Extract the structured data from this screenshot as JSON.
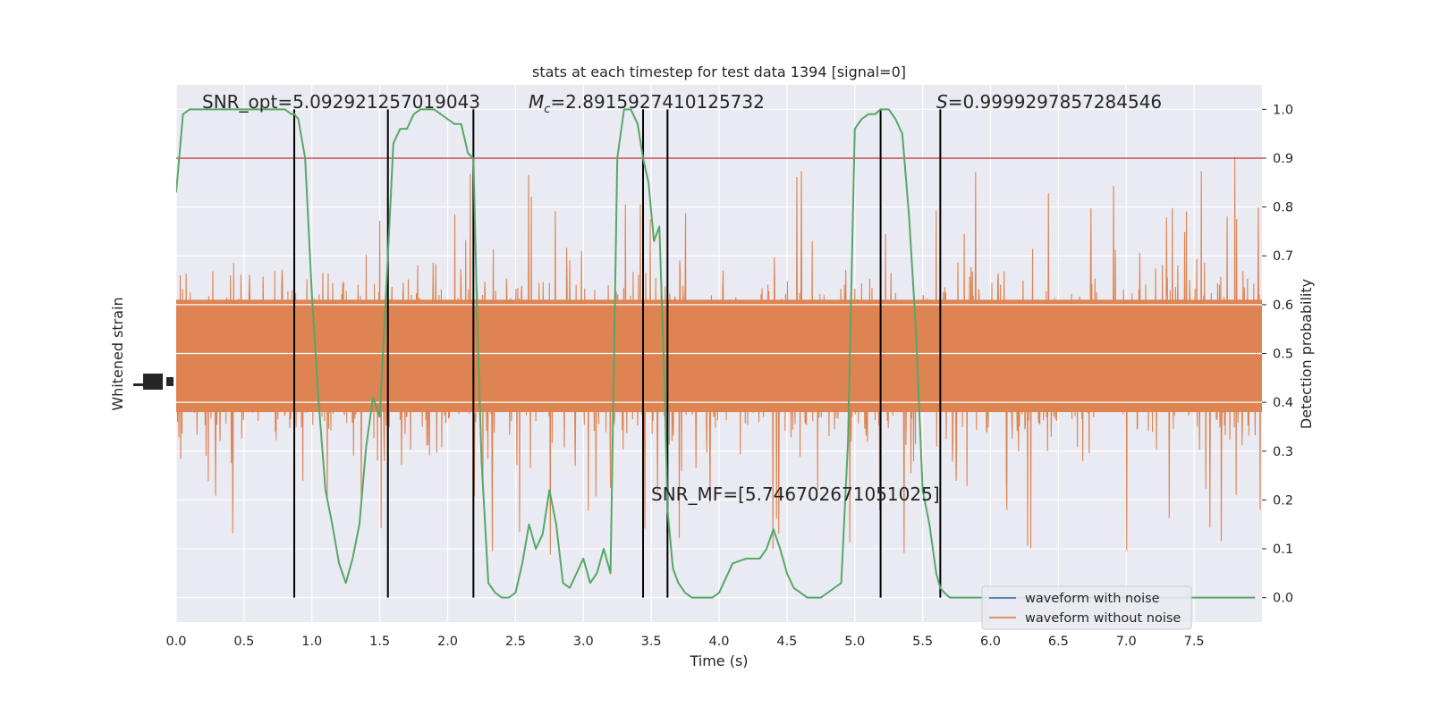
{
  "chart_data": {
    "type": "line",
    "title": "stats at each timestep for test data 1394 [signal=0]",
    "xlabel": "Time (s)",
    "ylabel_left": "Whitened strain",
    "ylabel_right": "Detection probability",
    "xlim": [
      0.0,
      8.0
    ],
    "ylim_right": [
      -0.05,
      1.05
    ],
    "x_ticks": [
      0.0,
      0.5,
      1.0,
      1.5,
      2.0,
      2.5,
      3.0,
      3.5,
      4.0,
      4.5,
      5.0,
      5.5,
      6.0,
      6.5,
      7.0,
      7.5
    ],
    "x_tick_labels": [
      "0.0",
      "0.5",
      "1.0",
      "1.5",
      "2.0",
      "2.5",
      "3.0",
      "3.5",
      "4.0",
      "4.5",
      "5.0",
      "5.5",
      "6.0",
      "6.5",
      "7.0",
      "7.5"
    ],
    "y_right_ticks": [
      0.0,
      0.1,
      0.2,
      0.3,
      0.4,
      0.5,
      0.6,
      0.7,
      0.8,
      0.9,
      1.0
    ],
    "y_right_tick_labels": [
      "0.0",
      "0.1",
      "0.2",
      "0.3",
      "0.4",
      "0.5",
      "0.6",
      "0.7",
      "0.8",
      "0.9",
      "1.0"
    ],
    "grid": true,
    "legend_position": "lower-right",
    "legend": [
      {
        "name": "waveform with noise",
        "color": "#4c72b0"
      },
      {
        "name": "waveform without noise",
        "color": "#dd8452"
      }
    ],
    "colors": {
      "background": "#eaeaf2",
      "noise_series": "#dd8452",
      "probability": "#55a868",
      "threshold": "#c44e52",
      "markers": "#000000"
    },
    "threshold": 0.9,
    "strain_band": {
      "typical_low": 0.3,
      "typical_high": 0.69,
      "spike_min": 0.0,
      "spike_max": 1.0
    },
    "vertical_markers_x": [
      0.87,
      1.56,
      2.19,
      3.44,
      3.62,
      5.19,
      5.63
    ],
    "probability_series": {
      "name": "detection probability",
      "x": [
        0.0,
        0.05,
        0.1,
        0.2,
        0.3,
        0.4,
        0.5,
        0.6,
        0.7,
        0.75,
        0.8,
        0.85,
        0.87,
        0.9,
        0.95,
        1.0,
        1.05,
        1.1,
        1.15,
        1.2,
        1.25,
        1.3,
        1.35,
        1.4,
        1.45,
        1.5,
        1.56,
        1.6,
        1.65,
        1.7,
        1.75,
        1.8,
        1.85,
        1.9,
        1.95,
        2.0,
        2.05,
        2.1,
        2.15,
        2.19,
        2.22,
        2.25,
        2.3,
        2.35,
        2.4,
        2.45,
        2.5,
        2.55,
        2.6,
        2.65,
        2.7,
        2.75,
        2.8,
        2.85,
        2.9,
        2.95,
        3.0,
        3.05,
        3.1,
        3.15,
        3.2,
        3.25,
        3.3,
        3.35,
        3.4,
        3.44,
        3.48,
        3.52,
        3.56,
        3.6,
        3.62,
        3.66,
        3.7,
        3.75,
        3.8,
        3.85,
        3.9,
        3.95,
        4.0,
        4.1,
        4.2,
        4.3,
        4.35,
        4.4,
        4.45,
        4.5,
        4.55,
        4.6,
        4.65,
        4.7,
        4.75,
        4.8,
        4.85,
        4.9,
        4.95,
        5.0,
        5.05,
        5.1,
        5.15,
        5.19,
        5.22,
        5.25,
        5.3,
        5.35,
        5.4,
        5.45,
        5.5,
        5.55,
        5.6,
        5.63,
        5.66,
        5.7,
        5.75,
        5.8,
        5.85,
        5.9,
        5.95,
        6.0,
        6.5,
        7.0,
        7.5,
        7.95
      ],
      "y": [
        0.83,
        0.99,
        1.0,
        1.0,
        1.0,
        1.0,
        1.0,
        1.0,
        1.0,
        1.0,
        1.0,
        0.99,
        0.99,
        0.98,
        0.9,
        0.62,
        0.4,
        0.22,
        0.15,
        0.07,
        0.03,
        0.08,
        0.15,
        0.31,
        0.41,
        0.37,
        0.7,
        0.93,
        0.96,
        0.96,
        0.99,
        1.0,
        1.0,
        1.0,
        0.99,
        0.98,
        0.97,
        0.97,
        0.91,
        0.9,
        0.55,
        0.28,
        0.03,
        0.01,
        0.0,
        0.0,
        0.01,
        0.07,
        0.15,
        0.1,
        0.13,
        0.22,
        0.15,
        0.03,
        0.02,
        0.05,
        0.08,
        0.03,
        0.05,
        0.1,
        0.05,
        0.9,
        1.0,
        1.0,
        0.97,
        0.9,
        0.85,
        0.73,
        0.76,
        0.42,
        0.18,
        0.06,
        0.03,
        0.01,
        0.0,
        0.0,
        0.0,
        0.0,
        0.01,
        0.07,
        0.08,
        0.08,
        0.1,
        0.14,
        0.1,
        0.05,
        0.02,
        0.01,
        0.0,
        0.0,
        0.0,
        0.01,
        0.02,
        0.03,
        0.32,
        0.96,
        0.98,
        0.99,
        0.99,
        1.0,
        1.0,
        1.0,
        0.98,
        0.95,
        0.78,
        0.55,
        0.22,
        0.15,
        0.05,
        0.02,
        0.01,
        0.0,
        0.0,
        0.0,
        0.0,
        0.0,
        0.0,
        0.0,
        0.0,
        0.0,
        0.0,
        0.0
      ]
    }
  },
  "annotations": {
    "snr_opt": "SNR_opt=5.092921257019043",
    "mc_symbol": "M",
    "mc_sub": "c",
    "mc_value": "=2.8915927410125732",
    "s_symbol": "S",
    "s_value": "=0.9999297857284546",
    "snr_mf": "SNR_MF=[5.746702671051025]"
  }
}
